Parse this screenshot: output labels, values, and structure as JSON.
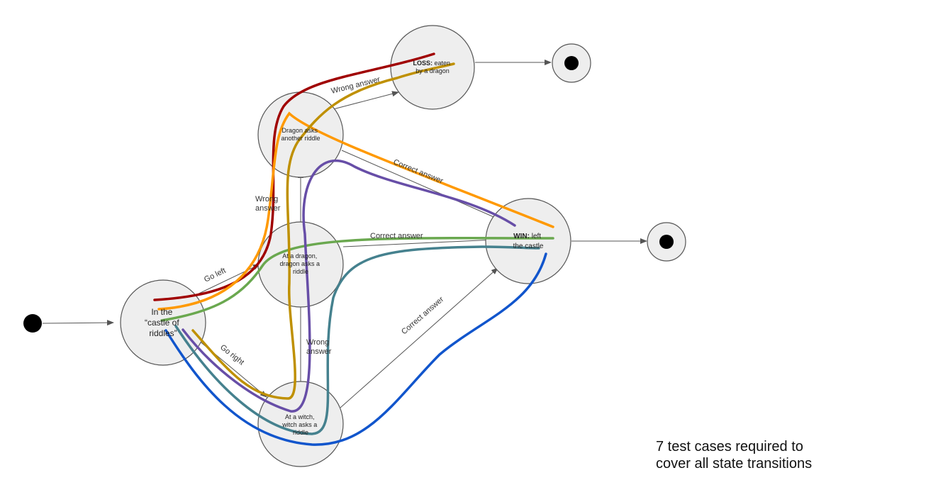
{
  "states": {
    "castle": {
      "lines": [
        "In the",
        "“castle of",
        "riddles”"
      ]
    },
    "dragon1": {
      "lines": [
        "At a dragon,",
        "dragon asks a",
        "riddle"
      ]
    },
    "dragon2": {
      "lines": [
        "Dragon asks",
        "another riddle"
      ]
    },
    "witch": {
      "lines": [
        "At a witch,",
        "witch asks a",
        "riddle"
      ]
    },
    "loss": {
      "bold": "LOSS:",
      "rest": " eaten",
      "line2": "by a dragon"
    },
    "win": {
      "bold": "WIN:",
      "rest": " left",
      "line2": "the castle"
    }
  },
  "edges": {
    "go_left": "Go left",
    "go_right": "Go right",
    "wrong_answer_1": "Wrong",
    "wrong_answer_1b": "answer",
    "wrong_answer_2": "Wrong answer",
    "wrong_answer_3": "Wrong",
    "wrong_answer_3b": "answer",
    "correct_answer_1": "Correct answer",
    "correct_answer_2": "Correct answer",
    "correct_answer_3": "Correct answer"
  },
  "note": "7 test cases required to\ncover all state transitions",
  "path_colors": [
    "#a00000",
    "#ff9900",
    "#6aa84f",
    "#674ea7",
    "#bf9000",
    "#45818e",
    "#1155cc"
  ]
}
